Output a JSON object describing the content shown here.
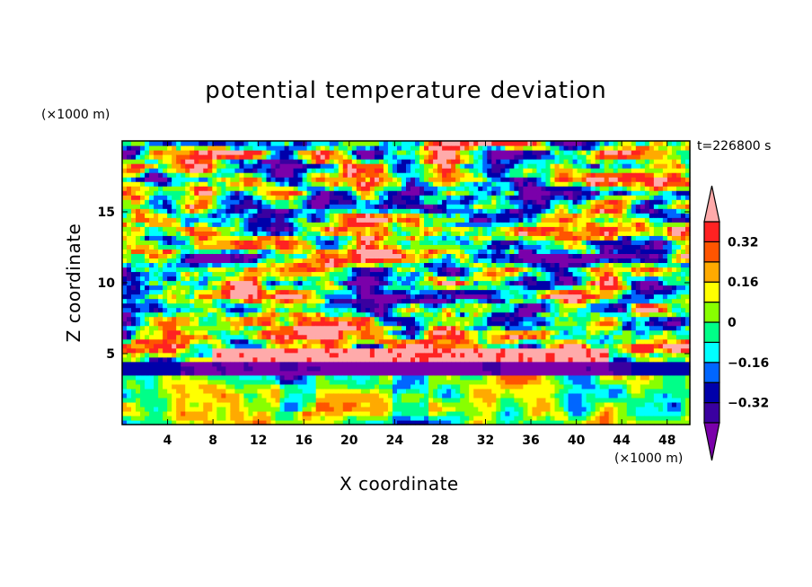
{
  "chart_data": {
    "type": "heatmap",
    "title": "potential temperature deviation",
    "xlabel": "X coordinate",
    "ylabel": "Z coordinate",
    "x_unit": "(×1000 m)",
    "y_unit": "(×1000 m)",
    "annotation": "t=226800 s",
    "xlim": [
      0,
      50
    ],
    "ylim": [
      0,
      20
    ],
    "xticks": [
      4,
      8,
      12,
      16,
      20,
      24,
      28,
      32,
      36,
      40,
      44,
      48
    ],
    "yticks": [
      5,
      10,
      15
    ],
    "colorbar": {
      "levels": [
        -0.4,
        -0.32,
        -0.24,
        -0.16,
        -0.08,
        0,
        0.08,
        0.16,
        0.24,
        0.32,
        0.4
      ],
      "labels": [
        "0.32",
        "0.16",
        "0",
        "−0.16",
        "−0.32"
      ],
      "label_values": [
        0.32,
        0.16,
        0,
        -0.16,
        -0.32
      ],
      "colors": [
        "#7a00aa",
        "#3a00a0",
        "#0000aa",
        "#0066ff",
        "#00ffff",
        "#00ff88",
        "#88ff00",
        "#ffff00",
        "#ffaa00",
        "#ff5500",
        "#ff2222",
        "#ffaaaa"
      ],
      "extend": "both"
    },
    "grid": false,
    "legend": "right"
  }
}
